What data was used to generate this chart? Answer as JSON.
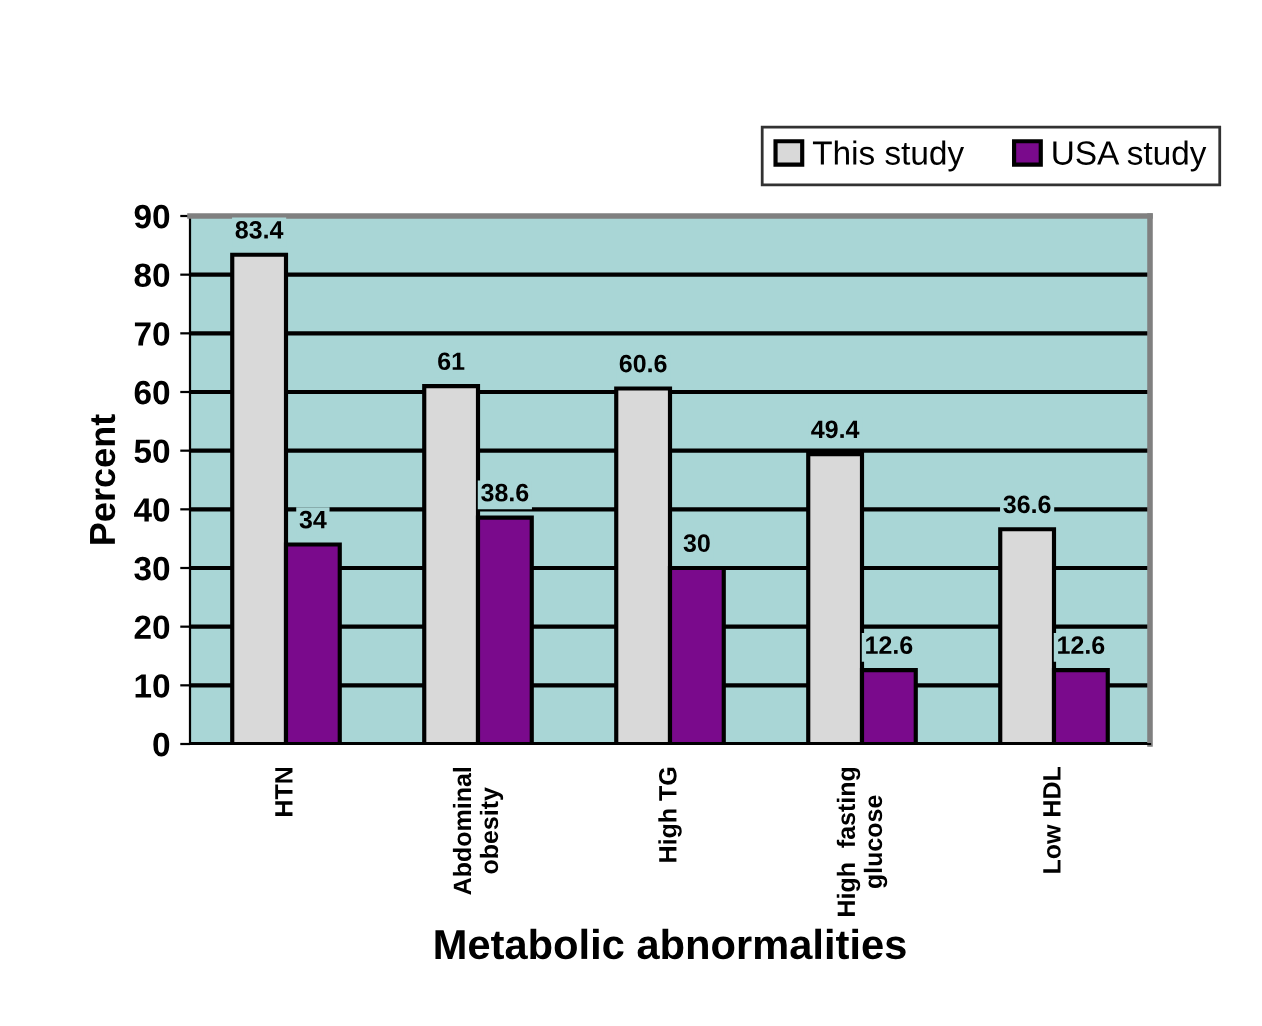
{
  "chart_data": {
    "type": "bar",
    "xlabel": "Metabolic abnormalities",
    "ylabel": "Percent",
    "categories": [
      "HTN",
      "Abdominal\nobesity",
      "High TG",
      "High  fasting\nglucose",
      "Low HDL"
    ],
    "series": [
      {
        "name": "This study",
        "color": "#d9d9d9",
        "values": [
          83.4,
          61,
          60.6,
          49.4,
          36.6
        ]
      },
      {
        "name": "USA study",
        "color": "#7a0a8c",
        "values": [
          34,
          38.6,
          30,
          12.6,
          12.6
        ]
      }
    ],
    "ylim": [
      0,
      90
    ],
    "yticks": [
      0,
      10,
      20,
      30,
      40,
      50,
      60,
      70,
      80,
      90
    ],
    "grid": "y",
    "legend": "top right",
    "data_labels": true
  }
}
